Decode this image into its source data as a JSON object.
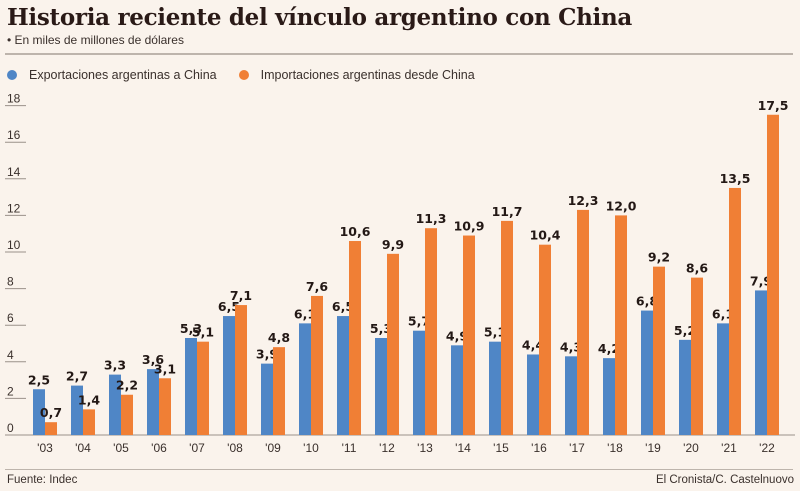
{
  "header": {
    "title": "Historia reciente del vínculo argentino con China",
    "subtitle": "• En miles de millones de dólares"
  },
  "legend": [
    {
      "label": "Exportaciones argentinas a China",
      "color": "#4f86c6"
    },
    {
      "label": "Importaciones argentinas desde China",
      "color": "#f07f35"
    }
  ],
  "footer": {
    "source": "Fuente: Indec",
    "credit": "El Cronista/C. Castelnuovo"
  },
  "chart_data": {
    "type": "bar",
    "title": "Historia reciente del vínculo argentino con China",
    "subtitle": "En miles de millones de dólares",
    "xlabel": "",
    "ylabel": "",
    "categories": [
      "'03",
      "'04",
      "'05",
      "'06",
      "'07",
      "'08",
      "'09",
      "'10",
      "'11",
      "'12",
      "'13",
      "'14",
      "'15",
      "'16",
      "'17",
      "'18",
      "'19",
      "'20",
      "'21",
      "'22"
    ],
    "series": [
      {
        "name": "Exportaciones argentinas a China",
        "color": "#4f86c6",
        "values": [
          2.5,
          2.7,
          3.3,
          3.6,
          5.3,
          6.5,
          3.9,
          6.1,
          6.5,
          5.3,
          5.7,
          4.9,
          5.1,
          4.4,
          4.3,
          4.2,
          6.8,
          5.2,
          6.1,
          7.9
        ],
        "labels": [
          "2,5",
          "2,7",
          "3,3",
          "3,6",
          "5,3",
          "6,5",
          "3,9",
          "6,1",
          "6,5",
          "5,3",
          "5,7",
          "4,9",
          "5,1",
          "4,4",
          "4,3",
          "4,2",
          "6,8",
          "5,2",
          "6,1",
          "7,9"
        ]
      },
      {
        "name": "Importaciones argentinas desde China",
        "color": "#f07f35",
        "values": [
          0.7,
          1.4,
          2.2,
          3.1,
          5.1,
          7.1,
          4.8,
          7.6,
          10.6,
          9.9,
          11.3,
          10.9,
          11.7,
          10.4,
          12.3,
          12.0,
          9.2,
          8.6,
          13.5,
          17.5
        ],
        "labels": [
          "0,7",
          "1,4",
          "2,2",
          "3,1",
          "5,1",
          "7,1",
          "4,8",
          "7,6",
          "10,6",
          "9,9",
          "11,3",
          "10,9",
          "11,7",
          "10,4",
          "12,3",
          "12,0",
          "9,2",
          "8,6",
          "13,5",
          "17,5"
        ]
      }
    ],
    "yticks": [
      0,
      2,
      4,
      6,
      8,
      10,
      12,
      14,
      16,
      18
    ],
    "ylim": [
      0,
      18
    ],
    "grid": false,
    "legend_position": "top-left"
  }
}
